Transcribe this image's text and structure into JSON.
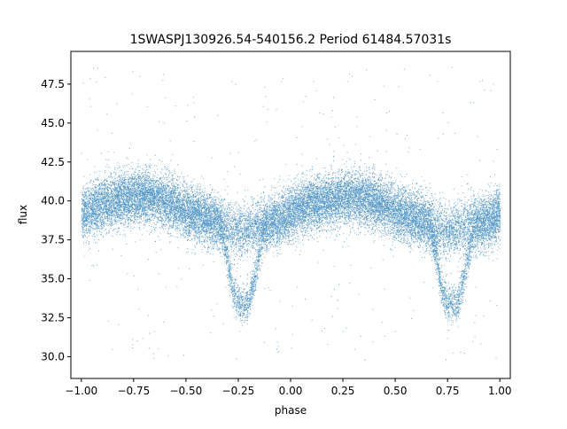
{
  "chart_data": {
    "type": "scatter",
    "title": "1SWASPJ130926.54-540156.2 Period 61484.57031s",
    "xlabel": "phase",
    "ylabel": "flux",
    "xlim": [
      -1.05,
      1.05
    ],
    "ylim": [
      28.6,
      49.6
    ],
    "grid": false,
    "point_color": "#1f77b4",
    "x_ticks": [
      {
        "value": -1.0,
        "label": "−1.00"
      },
      {
        "value": -0.75,
        "label": "−0.75"
      },
      {
        "value": -0.5,
        "label": "−0.50"
      },
      {
        "value": -0.25,
        "label": "−0.25"
      },
      {
        "value": 0.0,
        "label": "0.00"
      },
      {
        "value": 0.25,
        "label": "0.25"
      },
      {
        "value": 0.5,
        "label": "0.50"
      },
      {
        "value": 0.75,
        "label": "0.75"
      },
      {
        "value": 1.0,
        "label": "1.00"
      }
    ],
    "y_ticks": [
      {
        "value": 30.0,
        "label": "30.0"
      },
      {
        "value": 32.5,
        "label": "32.5"
      },
      {
        "value": 35.0,
        "label": "35.0"
      },
      {
        "value": 37.5,
        "label": "37.5"
      },
      {
        "value": 40.0,
        "label": "40.0"
      },
      {
        "value": 42.5,
        "label": "42.5"
      },
      {
        "value": 45.0,
        "label": "45.0"
      },
      {
        "value": 47.5,
        "label": "47.5"
      }
    ],
    "phase_range": [
      -1.0,
      1.0
    ],
    "light_curve": {
      "x": [
        -1.0,
        -0.9,
        -0.8,
        -0.7,
        -0.6,
        -0.5,
        -0.4,
        -0.33,
        -0.27,
        -0.22,
        -0.15,
        -0.05,
        0.0,
        0.1,
        0.2,
        0.3,
        0.4,
        0.5,
        0.6,
        0.67,
        0.73,
        0.78,
        0.85,
        0.95,
        1.0
      ],
      "y": [
        39.3,
        39.8,
        40.2,
        40.3,
        40.0,
        39.3,
        38.9,
        38.5,
        38.1,
        38.2,
        38.4,
        38.8,
        39.3,
        39.8,
        40.2,
        40.3,
        40.0,
        39.3,
        38.9,
        38.5,
        38.1,
        38.2,
        38.4,
        38.8,
        39.3
      ],
      "scatter_sd": 0.85
    },
    "eclipse_branch": {
      "x": [
        -0.33,
        -0.3,
        -0.28,
        -0.25,
        -0.22,
        -0.2,
        -0.18,
        -0.15,
        -0.13,
        0.67,
        0.7,
        0.72,
        0.75,
        0.78,
        0.8,
        0.82,
        0.85,
        0.87
      ],
      "y": [
        38.0,
        36.2,
        34.3,
        33.4,
        33.3,
        33.6,
        34.6,
        36.6,
        38.0,
        38.0,
        36.2,
        34.3,
        33.4,
        33.3,
        33.6,
        34.6,
        36.6,
        38.0
      ],
      "scatter_sd": 0.55
    },
    "approx_point_count": 24000
  }
}
